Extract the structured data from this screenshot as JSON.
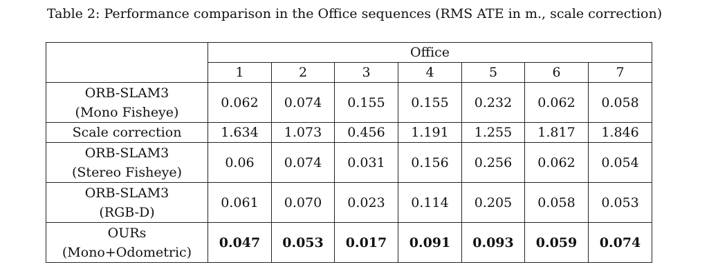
{
  "caption": "Table 2: Performance comparison in the Office sequences (RMS ATE in m., scale correction)",
  "table": {
    "group_header": "Office",
    "columns": [
      "1",
      "2",
      "3",
      "4",
      "5",
      "6",
      "7"
    ],
    "rows": [
      {
        "method_line1": "ORB-SLAM3",
        "method_line2": "(Mono Fisheye)",
        "values": [
          "0.062",
          "0.074",
          "0.155",
          "0.155",
          "0.232",
          "0.062",
          "0.058"
        ],
        "sub_label": "Scale correction",
        "sub_values": [
          "1.634",
          "1.073",
          "0.456",
          "1.191",
          "1.255",
          "1.817",
          "1.846"
        ]
      },
      {
        "method_line1": "ORB-SLAM3",
        "method_line2": "(Stereo Fisheye)",
        "values": [
          "0.06",
          "0.074",
          "0.031",
          "0.156",
          "0.256",
          "0.062",
          "0.054"
        ]
      },
      {
        "method_line1": "ORB-SLAM3",
        "method_line2": "(RGB-D)",
        "values": [
          "0.061",
          "0.070",
          "0.023",
          "0.114",
          "0.205",
          "0.058",
          "0.053"
        ]
      },
      {
        "method_line1": "OURs",
        "method_line2": "(Mono+Odometric)",
        "values": [
          "0.047",
          "0.053",
          "0.017",
          "0.091",
          "0.093",
          "0.059",
          "0.074"
        ]
      }
    ]
  }
}
